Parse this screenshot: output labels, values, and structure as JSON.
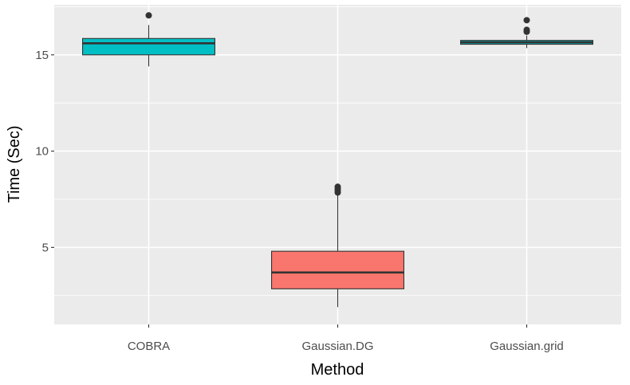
{
  "chart_data": {
    "type": "box",
    "title": "",
    "xlabel": "Method",
    "ylabel": "Time (Sec)",
    "categories": [
      "COBRA",
      "Gaussian.DG",
      "Gaussian.grid"
    ],
    "ylim": [
      1.0,
      17.6
    ],
    "yticks": [
      5,
      10,
      15
    ],
    "grid": true,
    "legend": "none",
    "boxes": [
      {
        "name": "COBRA",
        "lower_whisker": 14.4,
        "q1": 15.0,
        "median": 15.6,
        "q3": 15.85,
        "upper_whisker": 16.55,
        "outliers": [
          17.05
        ],
        "fill": "#00BFC4"
      },
      {
        "name": "Gaussian.DG",
        "lower_whisker": 1.9,
        "q1": 2.85,
        "median": 3.7,
        "q3": 4.8,
        "upper_whisker": 7.75,
        "outliers": [
          7.85,
          7.95,
          8.05,
          8.15
        ],
        "fill": "#F8766D"
      },
      {
        "name": "Gaussian.grid",
        "lower_whisker": 15.35,
        "q1": 15.55,
        "median": 15.65,
        "q3": 15.75,
        "upper_whisker": 16.0,
        "outliers": [
          16.2,
          16.3,
          16.8
        ],
        "fill": "#00BFC4"
      }
    ]
  },
  "style": {
    "panel_bg": "#EBEBEB",
    "grid_major": "#FFFFFF",
    "box_outline": "#333333",
    "point_color": "#333333"
  }
}
